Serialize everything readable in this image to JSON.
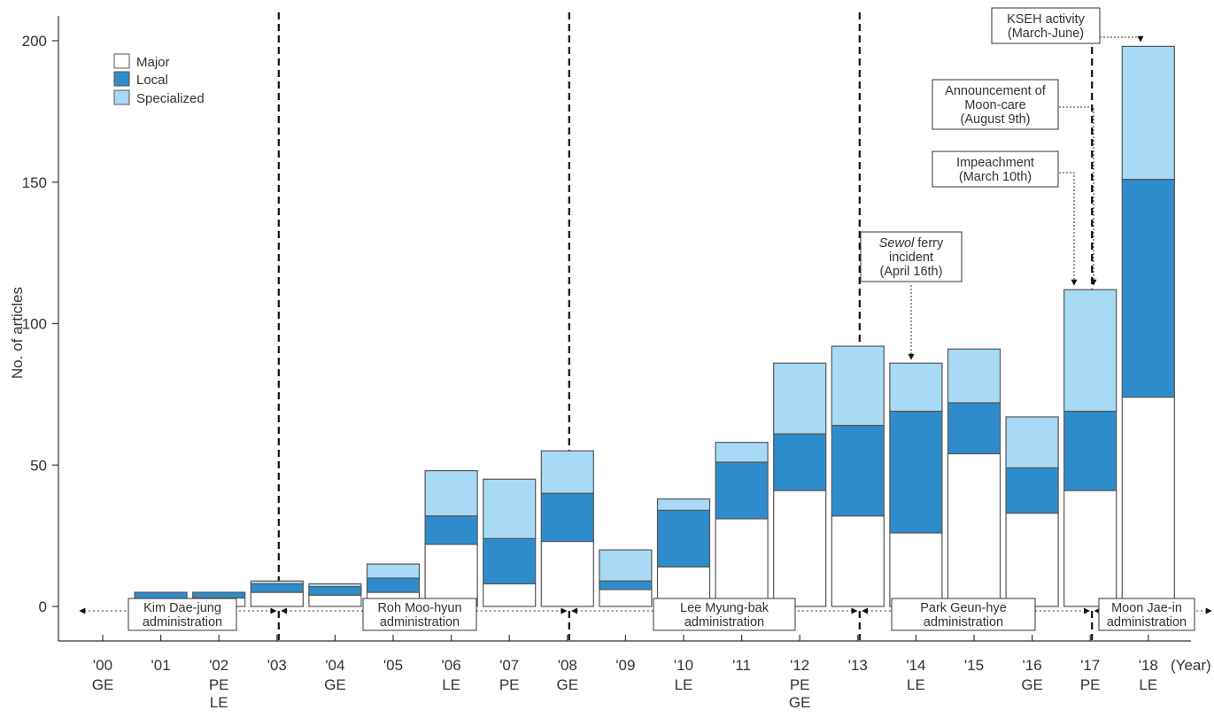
{
  "chart_data": {
    "type": "bar",
    "stacked": true,
    "ylabel": "No. of articles",
    "xlabel": "(Year)",
    "ylim": [
      0,
      200
    ],
    "yticks": [
      0,
      50,
      100,
      150,
      200
    ],
    "grid": false,
    "legend_position": "top-left",
    "categories": [
      "'00",
      "'01",
      "'02",
      "'03",
      "'04",
      "'05",
      "'06",
      "'07",
      "'08",
      "'09",
      "'10",
      "'11",
      "'12",
      "'13",
      "'14",
      "'15",
      "'16",
      "'17",
      "'18"
    ],
    "category_notes": [
      [
        "GE"
      ],
      [],
      [
        "PE",
        "LE"
      ],
      [],
      [
        "GE"
      ],
      [],
      [
        "LE"
      ],
      [
        "PE"
      ],
      [
        "GE"
      ],
      [],
      [
        "LE"
      ],
      [],
      [
        "PE",
        "GE"
      ],
      [],
      [
        "LE"
      ],
      [],
      [
        "GE"
      ],
      [
        "PE"
      ],
      [
        "LE"
      ]
    ],
    "series": [
      {
        "name": "Major",
        "color": "#ffffff",
        "values": [
          0,
          1,
          3,
          5,
          4,
          5,
          22,
          8,
          23,
          6,
          14,
          31,
          41,
          32,
          26,
          54,
          33,
          41,
          74
        ]
      },
      {
        "name": "Local",
        "color": "#2f8ccc",
        "values": [
          0,
          4,
          2,
          3,
          3,
          5,
          10,
          16,
          17,
          3,
          20,
          20,
          20,
          32,
          43,
          18,
          16,
          28,
          77
        ]
      },
      {
        "name": "Specialized",
        "color": "#a8daf5",
        "values": [
          0,
          0,
          0,
          1,
          1,
          5,
          16,
          21,
          15,
          11,
          4,
          7,
          25,
          28,
          17,
          19,
          18,
          43,
          47
        ]
      }
    ],
    "administrations": [
      {
        "name": "Kim Dae-jung administration",
        "lines": [
          "Kim Dae-jung",
          "administration"
        ]
      },
      {
        "name": "Roh Moo-hyun administration",
        "lines": [
          "Roh Moo-hyun",
          "administration"
        ]
      },
      {
        "name": "Lee Myung-bak administration",
        "lines": [
          "Lee Myung-bak",
          "administration"
        ]
      },
      {
        "name": "Park Geun-hye administration",
        "lines": [
          "Park Geun-hye",
          "administration"
        ]
      },
      {
        "name": "Moon Jae-in administration",
        "lines": [
          "Moon Jae-in",
          "administration"
        ]
      }
    ],
    "annotations": [
      {
        "lines": [
          "KSEH activity",
          "(March-June)"
        ],
        "category": "'18"
      },
      {
        "lines": [
          "Announcement of",
          "Moon-care",
          "(August 9th)"
        ],
        "category": "'17"
      },
      {
        "lines": [
          "Impeachment",
          "(March 10th)"
        ],
        "category": "'17"
      },
      {
        "lines": [
          "Sewol ferry",
          "incident",
          "(April 16th)"
        ],
        "italic_word": "Sewol",
        "category": "'14"
      }
    ],
    "colors": {
      "stroke": "#555555",
      "major": "#ffffff",
      "local": "#2f8ccc",
      "specialized": "#a8daf5"
    }
  }
}
